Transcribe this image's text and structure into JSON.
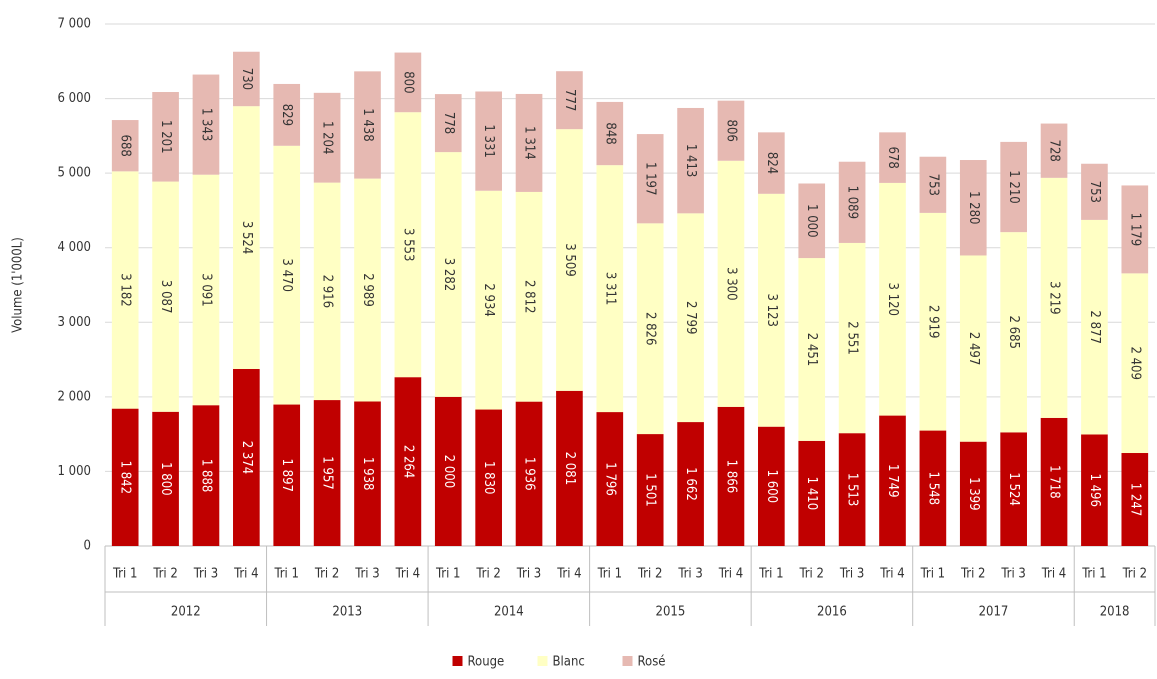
{
  "chart_data": {
    "type": "stacked_bar",
    "y_label": "Volume (1'000L)",
    "groups": [
      {
        "name": "2012",
        "categories": [
          "Tri 1",
          "Tri 2",
          "Tri 3",
          "Tri 4"
        ]
      },
      {
        "name": "2013",
        "categories": [
          "Tri 1",
          "Tri 2",
          "Tri 3",
          "Tri 4"
        ]
      },
      {
        "name": "2014",
        "categories": [
          "Tri 1",
          "Tri 2",
          "Tri 3",
          "Tri 4"
        ]
      },
      {
        "name": "2015",
        "categories": [
          "Tri 1",
          "Tri 2",
          "Tri 3",
          "Tri 4"
        ]
      },
      {
        "name": "2016",
        "categories": [
          "Tri 1",
          "Tri 2",
          "Tri 3",
          "Tri 4"
        ]
      },
      {
        "name": "2017",
        "categories": [
          "Tri 1",
          "Tri 2",
          "Tri 3",
          "Tri 4"
        ]
      },
      {
        "name": "2018",
        "categories": [
          "Tri 1",
          "Tri 2"
        ]
      }
    ],
    "series": [
      {
        "name": "Rouge",
        "color": "#c00000",
        "label_color": "#ffffff",
        "values": [
          1842,
          1800,
          1888,
          2374,
          1897,
          1957,
          1938,
          2264,
          2000,
          1830,
          1936,
          2081,
          1796,
          1501,
          1662,
          1866,
          1600,
          1410,
          1513,
          1749,
          1548,
          1399,
          1524,
          1718,
          1496,
          1247
        ],
        "value_labels": [
          "1 842",
          "1 800",
          "1 888",
          "2 374",
          "1 897",
          "1 957",
          "1 938",
          "2 264",
          "2 000",
          "1 830",
          "1 936",
          "2 081",
          "1 796",
          "1 501",
          "1 662",
          "1 866",
          "1 600",
          "1 410",
          "1 513",
          "1 749",
          "1 548",
          "1 399",
          "1 524",
          "1 718",
          "1 496",
          "1 247"
        ]
      },
      {
        "name": "Blanc",
        "color": "#ffffc4",
        "label_color": "#333333",
        "values": [
          3182,
          3087,
          3091,
          3524,
          3470,
          2916,
          2989,
          3553,
          3282,
          2934,
          2812,
          3509,
          3311,
          2826,
          2799,
          3300,
          3123,
          2451,
          2551,
          3120,
          2919,
          2497,
          2685,
          3219,
          2877,
          2409
        ],
        "value_labels": [
          "3 182",
          "3 087",
          "3 091",
          "3 524",
          "3 470",
          "2 916",
          "2 989",
          "3 553",
          "3 282",
          "2 934",
          "2 812",
          "3 509",
          "3 311",
          "2 826",
          "2 799",
          "3 300",
          "3 123",
          "2 451",
          "2 551",
          "3 120",
          "2 919",
          "2 497",
          "2 685",
          "3 219",
          "2 877",
          "2 409"
        ]
      },
      {
        "name": "Rosé",
        "color": "#e6b9b2",
        "label_color": "#333333",
        "values": [
          688,
          1201,
          1343,
          730,
          829,
          1204,
          1438,
          800,
          778,
          1331,
          1314,
          777,
          848,
          1197,
          1413,
          806,
          824,
          1000,
          1089,
          678,
          753,
          1280,
          1210,
          728,
          753,
          1179
        ],
        "value_labels": [
          "688",
          "1 201",
          "1 343",
          "730",
          "829",
          "1 204",
          "1 438",
          "800",
          "778",
          "1 331",
          "1 314",
          "777",
          "848",
          "1 197",
          "1 413",
          "806",
          "824",
          "1 000",
          "1 089",
          "678",
          "753",
          "1 280",
          "1 210",
          "728",
          "753",
          "1 179"
        ]
      }
    ],
    "ylim": [
      0,
      7000
    ],
    "yticks": [
      0,
      {
        "value": 1000,
        "label": "1 000"
      },
      {
        "value": 2000,
        "label": "2 000"
      },
      {
        "value": 3000,
        "label": "3 000"
      },
      {
        "value": 4000,
        "label": "4 000"
      },
      {
        "value": 5000,
        "label": "5 000"
      },
      {
        "value": 6000,
        "label": "6 000"
      },
      {
        "value": 7000,
        "label": "7 000"
      }
    ],
    "grid": true,
    "legend": "bottom"
  }
}
